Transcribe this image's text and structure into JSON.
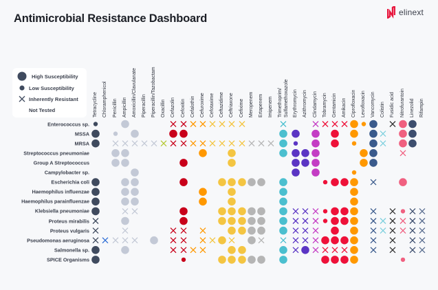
{
  "title": "Antimicrobial Resistance Dashboard",
  "logo": {
    "text": "elinext",
    "color": "#e8173e"
  },
  "legend": {
    "items": [
      {
        "label": "High Susceptibility",
        "symbol": "large-dot"
      },
      {
        "label": "Low Susceptibility",
        "symbol": "small-dot"
      },
      {
        "label": "Inherently Resistant",
        "symbol": "cross"
      },
      {
        "label": "Not Tested",
        "symbol": "none"
      }
    ]
  },
  "chart_data": {
    "type": "heatmap",
    "title": "Antimicrobial Resistance Dashboard",
    "encoding": {
      "H": "High Susceptibility",
      "L": "Low Susceptibility",
      "X": "Inherently Resistant",
      "-": "Not Tested"
    },
    "columns": [
      {
        "name": "Tetracycline",
        "color": "#3f4a5e"
      },
      {
        "name": "Chloramphenicol",
        "color": "#2f6fd6"
      },
      {
        "name": "Penicillin",
        "color": "#c3c9d6"
      },
      {
        "name": "Ampicillin",
        "color": "#c3c9d6"
      },
      {
        "name": "Amoxicillin/Clavulanate",
        "color": "#c3c9d6"
      },
      {
        "name": "Piperacillin",
        "color": "#c3c9d6"
      },
      {
        "name": "Piperacillin/Tazobactam",
        "color": "#c3c9d6"
      },
      {
        "name": "Oxacillin",
        "color": "#b5c934"
      },
      {
        "name": "Cefazolin",
        "color": "#c8001a"
      },
      {
        "name": "Cefoxitin",
        "color": "#c8001a"
      },
      {
        "name": "Cefalothin",
        "color": "#ff9800"
      },
      {
        "name": "Cefuroxime",
        "color": "#ff9800"
      },
      {
        "name": "Cefotaxime",
        "color": "#f4c542"
      },
      {
        "name": "Ceftazidime",
        "color": "#f4c542"
      },
      {
        "name": "Ceftriaxone",
        "color": "#f4c542"
      },
      {
        "name": "Cefixime",
        "color": "#f4c542"
      },
      {
        "name": "Meropenem",
        "color": "#b5b5b5"
      },
      {
        "name": "Ertapenem",
        "color": "#b5b5b5"
      },
      {
        "name": "Imipenem",
        "color": "#b5b5b5"
      },
      {
        "name": "Trimethoprim/ Sulfamethoxazole",
        "color": "#4bbfcf"
      },
      {
        "name": "Erythromycin",
        "color": "#5b35c4"
      },
      {
        "name": "Azithromycin",
        "color": "#5b35c4"
      },
      {
        "name": "Clindamycin",
        "color": "#c43dc4"
      },
      {
        "name": "Tobramycin",
        "color": "#ee1139"
      },
      {
        "name": "Gentamicin",
        "color": "#ee1139"
      },
      {
        "name": "Amikacin",
        "color": "#ee1139"
      },
      {
        "name": "Ciprofloxacin",
        "color": "#ff9800"
      },
      {
        "name": "Levofloxacin",
        "color": "#ff9800"
      },
      {
        "name": "Vancomycin",
        "color": "#3a5a8c"
      },
      {
        "name": "Colistin",
        "color": "#7fd0de"
      },
      {
        "name": "Fusidic acid",
        "color": "#333333"
      },
      {
        "name": "Nitrofurantoin",
        "color": "#f06080"
      },
      {
        "name": "Linezolid",
        "color": "#3d4e6e"
      },
      {
        "name": "Rifampin",
        "color": "#5a6e90"
      }
    ],
    "rows": [
      {
        "organism": "Enterococcus sp.",
        "cells": "L--H----XXXXXXXX---X--XXXXHLH-XHH-"
      },
      {
        "organism": "MSSA",
        "cells": "H-L-H---HH---------HH-H-H-H-HX-HH-"
      },
      {
        "organism": "MRSA",
        "cells": "H-XXXXXXXXXXXXXXXXXHL-H-H-L-HX-HH-"
      },
      {
        "organism": "Streptococcus pneumoniae",
        "cells": "--HH-------H--H----HHHH----HH--X--"
      },
      {
        "organism": "Group A Streptococcus",
        "cells": "--HH-----H----H-----HHH----HH-----"
      },
      {
        "organism": "Campylobacter sp.",
        "cells": "----H---------------H-H---L-------"
      },
      {
        "organism": "Escherichia coli",
        "cells": "H--HH----H---HHHHH-H---LHHH-X--H--"
      },
      {
        "organism": "Haemophilus influenzae",
        "cells": "H--HH------H--H----H------H-------"
      },
      {
        "organism": "Haemophilus parainfluenzae",
        "cells": "H--HH------H--H----H------H-------"
      },
      {
        "organism": "Klebsiella pneumoniae",
        "cells": "H--XX----H---HHHHH-HXXXLHHH-X-XLXX"
      },
      {
        "organism": "Proteus mirabilis",
        "cells": "X--H-----H---HHHHH-HXXXLHHH-XXXXXX"
      },
      {
        "organism": "Proteus vulgaris",
        "cells": "X--X----XX-X--HHHH-HXXX-H-H-XXXXXX"
      },
      {
        "organism": "Pseudomonas aeruginosa",
        "cells": "XXXXX-H-XX-XXHX-HX-XXXXHHHH-X-X-XX"
      },
      {
        "organism": "Salmonella sp.",
        "cells": "H--H----XXXX--HH---HXHXXXXH-X-X-XX"
      },
      {
        "organism": "SPICE Organisms",
        "cells": "H--------L---HHHHH-H---HHHH----L--"
      }
    ]
  }
}
